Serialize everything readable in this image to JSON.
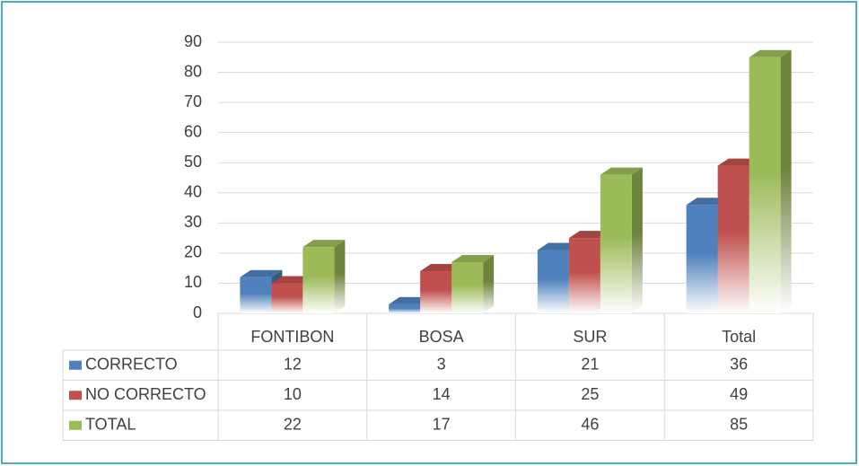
{
  "chart_data": {
    "type": "bar3d",
    "categories": [
      "FONTIBON",
      "BOSA",
      "SUR",
      "Total"
    ],
    "series": [
      {
        "name": "CORRECTO",
        "color": "#4f81bd",
        "values": [
          12,
          3,
          21,
          36
        ]
      },
      {
        "name": "NO CORRECTO",
        "color": "#c0504d",
        "values": [
          10,
          14,
          25,
          49
        ]
      },
      {
        "name": "TOTAL",
        "color": "#9bbb59",
        "values": [
          22,
          17,
          46,
          85
        ]
      }
    ],
    "ylim": [
      0,
      90
    ],
    "yticks": [
      0,
      10,
      20,
      30,
      40,
      50,
      60,
      70,
      80,
      90
    ],
    "grid": true,
    "data_table": true
  }
}
